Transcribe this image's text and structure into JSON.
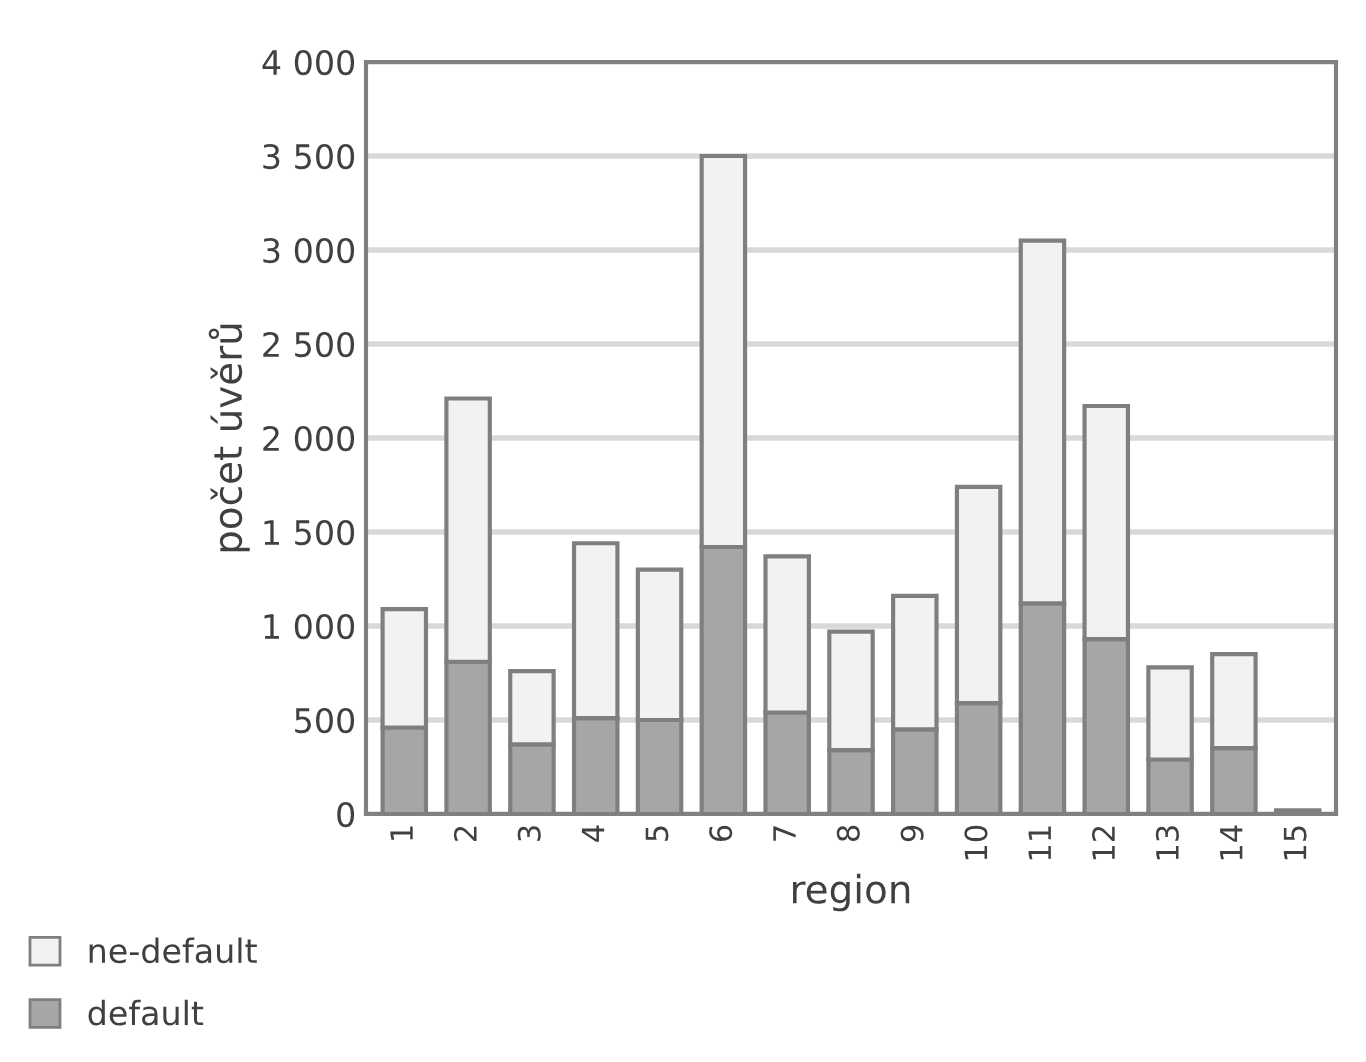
{
  "chart_data": {
    "type": "bar",
    "stacked": true,
    "xlabel": "region",
    "ylabel": "počet úvěrů",
    "categories": [
      "1",
      "2",
      "3",
      "4",
      "5",
      "6",
      "7",
      "8",
      "9",
      "10",
      "11",
      "12",
      "13",
      "14",
      "15"
    ],
    "series": [
      {
        "name": "default",
        "color": "#a6a6a6",
        "values": [
          460,
          810,
          370,
          510,
          500,
          1420,
          540,
          340,
          450,
          590,
          1120,
          930,
          290,
          350,
          20
        ]
      },
      {
        "name": "ne-default",
        "color": "#f2f2f2",
        "values": [
          630,
          1400,
          390,
          930,
          800,
          2080,
          830,
          630,
          710,
          1150,
          1930,
          1240,
          490,
          500,
          null
        ]
      }
    ],
    "ylim": [
      0,
      4000
    ],
    "yticks": [
      0,
      500,
      {
        "value": 1000,
        "label": "1 000"
      },
      {
        "value": 1500,
        "label": "1 500"
      },
      {
        "value": 2000,
        "label": "2 000"
      },
      {
        "value": 2500,
        "label": "2 500"
      },
      {
        "value": 3000,
        "label": "3 000"
      },
      {
        "value": 3500,
        "label": "3 500"
      },
      {
        "value": 4000,
        "label": "4 000"
      }
    ],
    "grid": "y",
    "legend": "bottom left"
  }
}
